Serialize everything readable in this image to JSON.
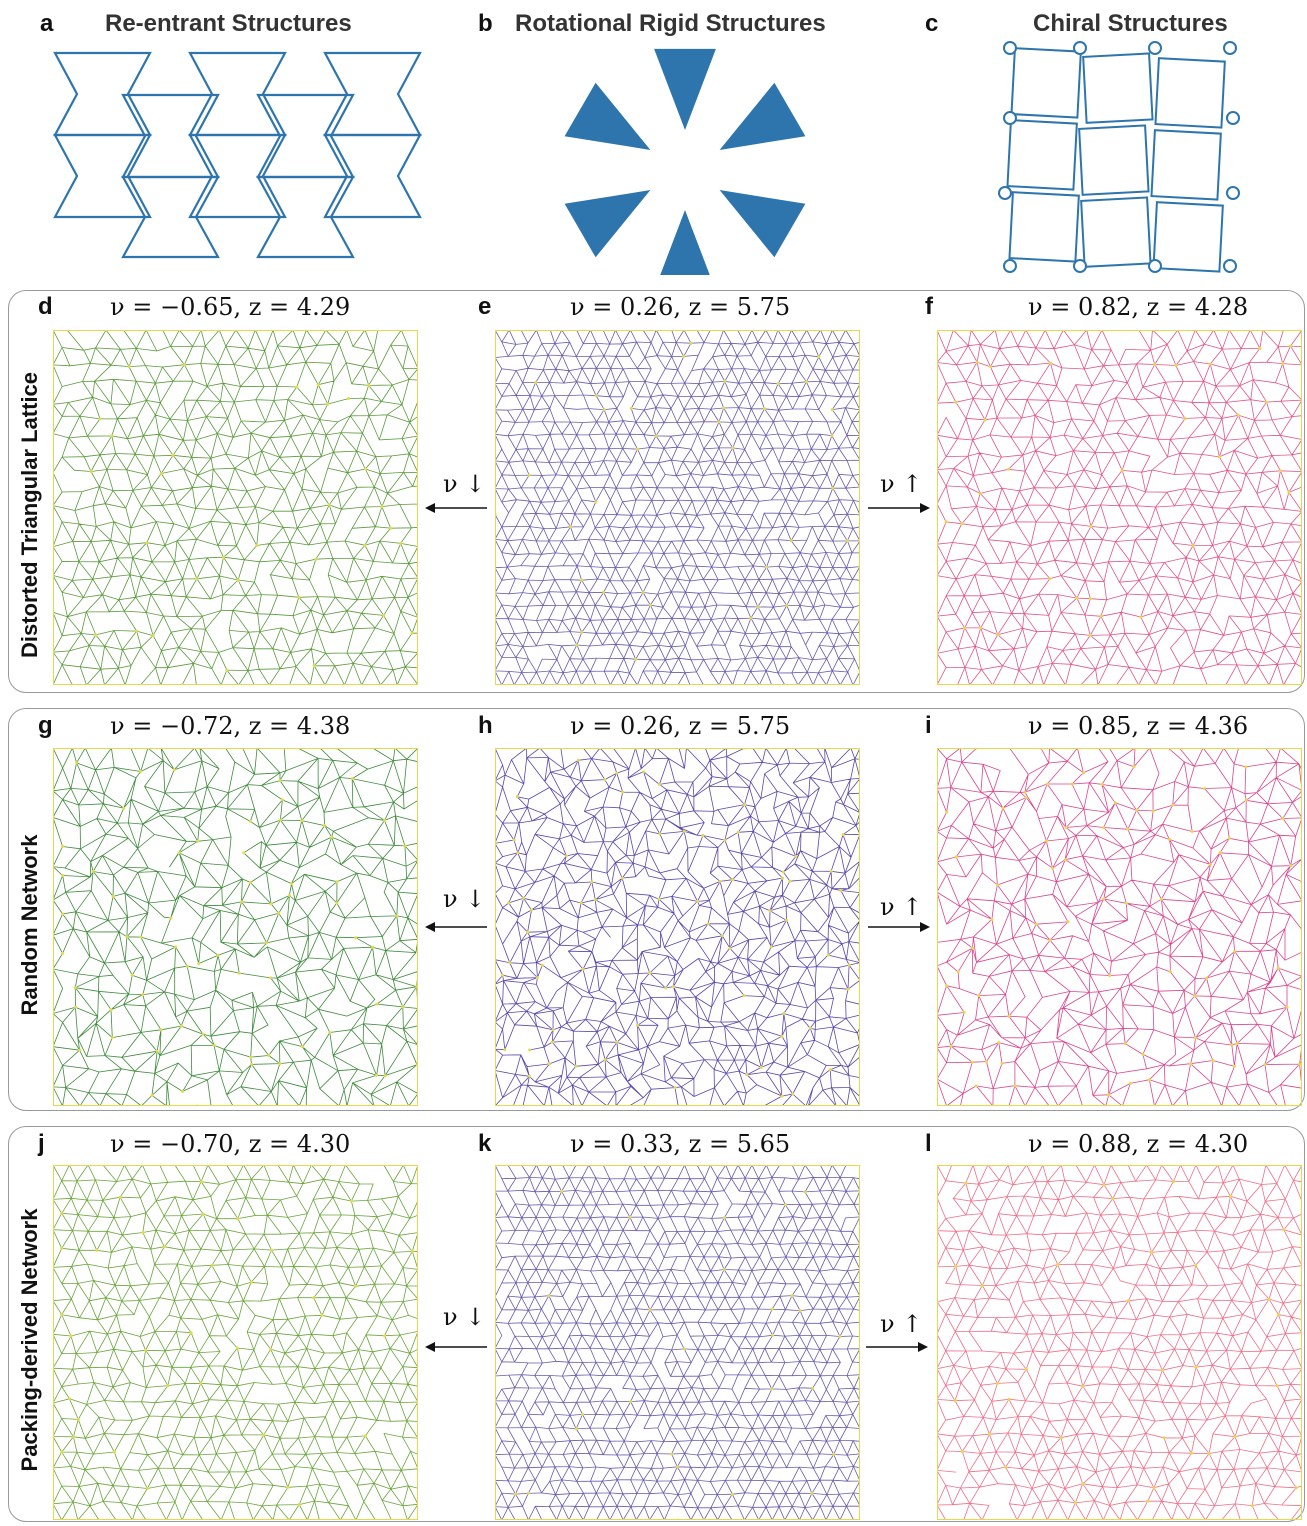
{
  "top": {
    "a": {
      "letter": "a",
      "title": "Re-entrant Structures"
    },
    "b": {
      "letter": "b",
      "title": "Rotational Rigid Structures"
    },
    "c": {
      "letter": "c",
      "title": "Chiral Structures"
    }
  },
  "rows": [
    {
      "label": "Distorted Triangular Lattice",
      "panels": [
        {
          "letter": "d",
          "nu": "−0.65",
          "z": "4.29"
        },
        {
          "letter": "e",
          "nu": "0.26",
          "z": "5.75"
        },
        {
          "letter": "f",
          "nu": "0.82",
          "z": "4.28"
        }
      ]
    },
    {
      "label": "Random Network",
      "panels": [
        {
          "letter": "g",
          "nu": "−0.72",
          "z": "4.38"
        },
        {
          "letter": "h",
          "nu": "0.26",
          "z": "5.75"
        },
        {
          "letter": "i",
          "nu": "0.85",
          "z": "4.36"
        }
      ]
    },
    {
      "label": "Packing-derived Network",
      "panels": [
        {
          "letter": "j",
          "nu": "−0.70",
          "z": "4.30"
        },
        {
          "letter": "k",
          "nu": "0.33",
          "z": "5.65"
        },
        {
          "letter": "l",
          "nu": "0.88",
          "z": "4.30"
        }
      ]
    }
  ],
  "arrows": {
    "left": "ν ↓",
    "right": "ν ↑"
  },
  "colors": {
    "structure_blue": "#2e75ad",
    "green_net": "#5a9a3c",
    "purple_net": "#6a5ca8",
    "pink_net": "#e0558a",
    "node_yellow": "#e8d84a",
    "frame_gray": "#999999"
  }
}
